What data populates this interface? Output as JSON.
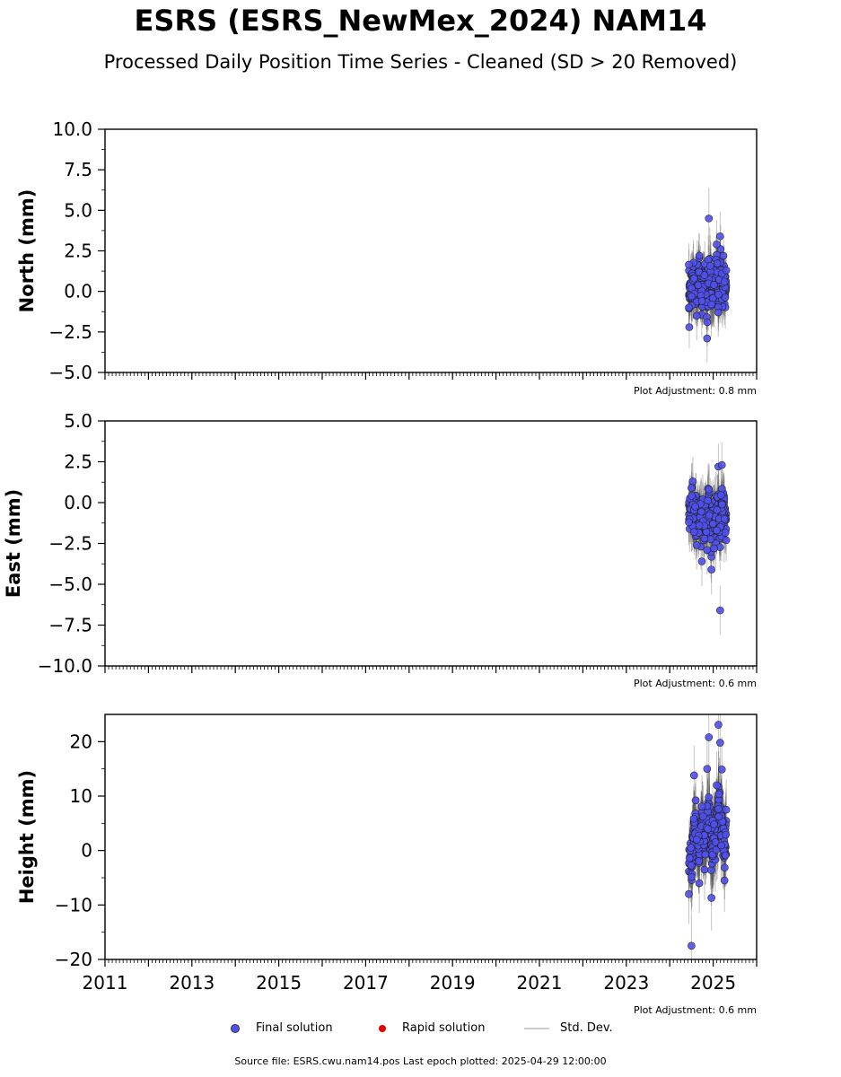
{
  "header": {
    "title": "ESRS (ESRS_NewMex_2024) NAM14",
    "subtitle": "Processed Daily Position Time Series - Cleaned (SD > 20 Removed)"
  },
  "colors": {
    "final_solution": "#5050f0",
    "rapid_solution": "#e00000",
    "std_dev": "#b0b0b0"
  },
  "legend": {
    "final_label": "Final solution",
    "rapid_label": "Rapid solution",
    "std_label": "Std. Dev."
  },
  "footer": {
    "source": "Source file: ESRS.cwu.nam14.pos  Last epoch plotted: 2025-04-29 12:00:00"
  },
  "chart_data": [
    {
      "type": "scatter",
      "ylabel": "North (mm)",
      "xlim": [
        2011,
        2026
      ],
      "ylim": [
        -5,
        10
      ],
      "yticks": [
        -5.0,
        -2.5,
        0.0,
        2.5,
        5.0,
        7.5,
        10.0
      ],
      "adjustment": "Plot Adjustment: 0.8 mm",
      "series": [
        {
          "type": "scatter",
          "x": [
            2024.44,
            2024.5,
            2024.56,
            2024.62,
            2024.68,
            2024.74,
            2024.8,
            2024.86,
            2024.9,
            2024.96,
            2025.02,
            2025.08,
            2025.12,
            2025.16,
            2025.2,
            2025.26,
            2025.3
          ],
          "y": [
            -1.0,
            -0.3,
            0.8,
            -1.5,
            2.2,
            -0.6,
            1.0,
            -2.9,
            4.5,
            -0.8,
            0.4,
            2.9,
            -0.2,
            3.4,
            1.1,
            0.6,
            1.3
          ],
          "err": [
            1.3,
            1.4,
            1.3,
            1.5,
            1.4,
            1.3,
            1.4,
            1.5,
            1.9,
            1.5,
            1.4,
            1.5,
            1.4,
            1.5,
            1.3,
            1.3,
            1.2
          ]
        }
      ]
    },
    {
      "type": "scatter",
      "ylabel": "East (mm)",
      "xlim": [
        2011,
        2026
      ],
      "ylim": [
        -10,
        5
      ],
      "yticks": [
        -10.0,
        -7.5,
        -5.0,
        -2.5,
        0.0,
        2.5,
        5.0
      ],
      "adjustment": "Plot Adjustment: 0.6 mm",
      "series": [
        {
          "type": "scatter",
          "x": [
            2024.44,
            2024.5,
            2024.56,
            2024.62,
            2024.68,
            2024.74,
            2024.8,
            2024.86,
            2024.9,
            2024.96,
            2025.02,
            2025.08,
            2025.12,
            2025.16,
            2025.2,
            2025.26,
            2025.3
          ],
          "y": [
            -1.2,
            0.9,
            -1.8,
            -2.6,
            -1.4,
            -3.6,
            -2.2,
            -2.9,
            0.8,
            -4.1,
            -2.8,
            -1.7,
            2.2,
            -6.6,
            2.3,
            -1.0,
            -2.3
          ],
          "err": [
            1.4,
            1.5,
            1.4,
            1.5,
            1.4,
            1.5,
            1.4,
            1.5,
            1.6,
            1.5,
            1.5,
            1.4,
            1.4,
            1.5,
            1.4,
            1.3,
            1.3
          ]
        }
      ]
    },
    {
      "type": "scatter",
      "ylabel": "Height (mm)",
      "xlim": [
        2011,
        2026
      ],
      "ylim": [
        -20,
        25
      ],
      "yticks": [
        -20,
        -10,
        0,
        10,
        20
      ],
      "xticks": [
        2011,
        2013,
        2015,
        2017,
        2019,
        2021,
        2023,
        2025
      ],
      "adjustment": "Plot Adjustment: 0.6 mm",
      "series": [
        {
          "type": "scatter",
          "x": [
            2024.44,
            2024.5,
            2024.56,
            2024.62,
            2024.68,
            2024.74,
            2024.8,
            2024.86,
            2024.9,
            2024.96,
            2025.02,
            2025.08,
            2025.12,
            2025.16,
            2025.2,
            2025.26,
            2025.3
          ],
          "y": [
            -8.0,
            -17.5,
            13.8,
            2.0,
            -6.0,
            8.1,
            -3.5,
            15.0,
            20.8,
            -8.7,
            4.8,
            12.0,
            23.1,
            19.8,
            14.9,
            -5.5,
            7.5
          ],
          "err": [
            5.5,
            6.0,
            5.5,
            5.8,
            5.5,
            5.7,
            5.6,
            6.0,
            6.5,
            6.0,
            5.8,
            6.2,
            6.5,
            6.3,
            6.0,
            5.8,
            5.5
          ]
        }
      ]
    }
  ]
}
